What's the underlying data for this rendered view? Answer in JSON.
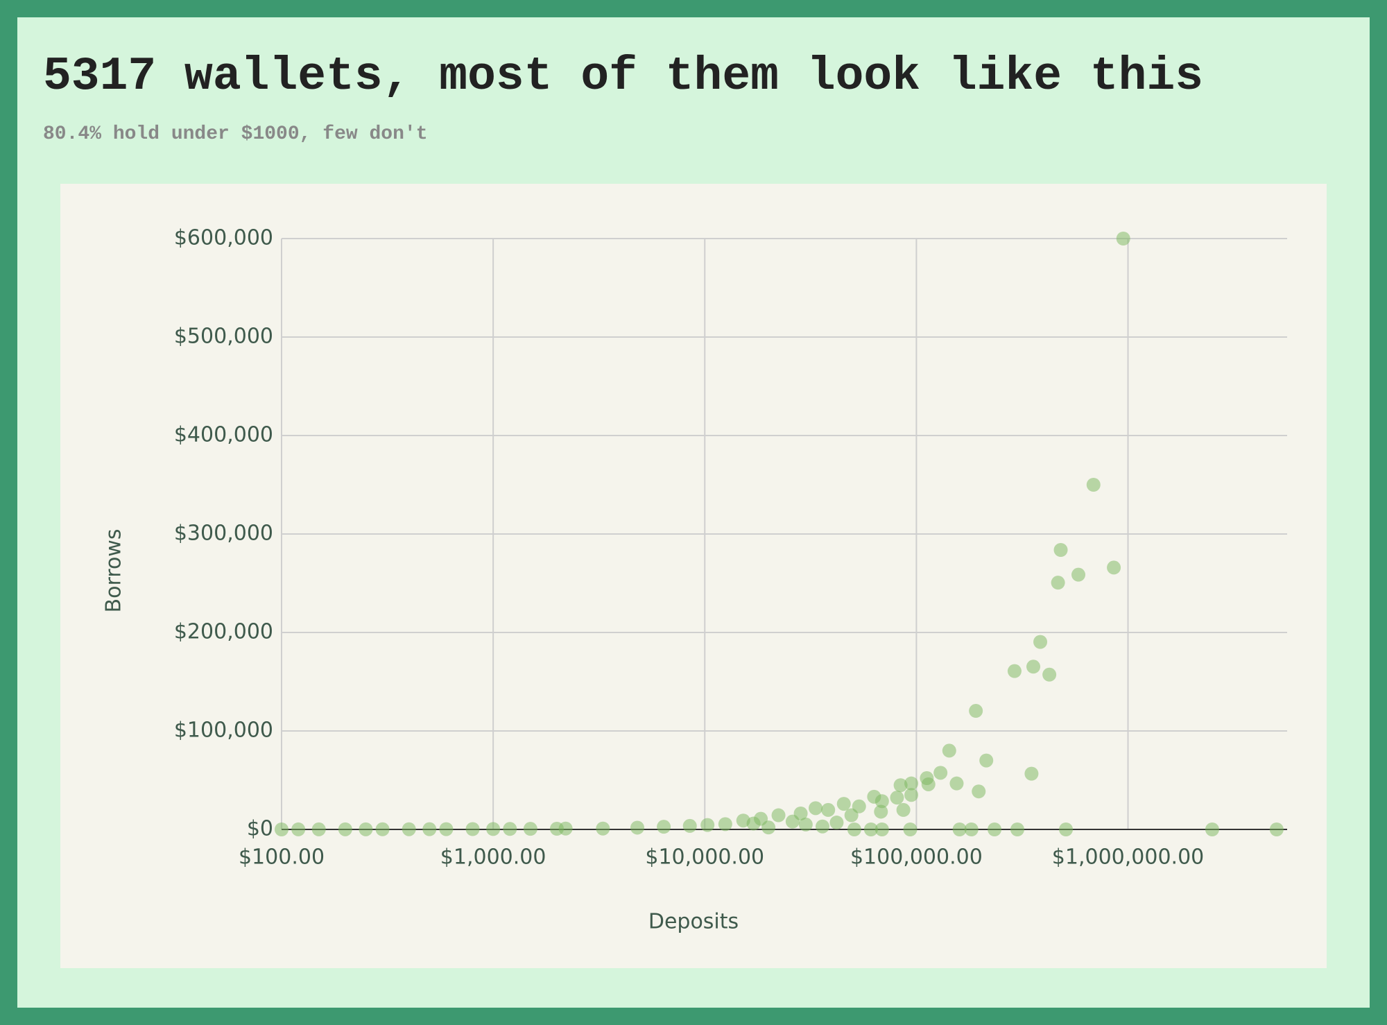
{
  "chart_data": {
    "type": "scatter",
    "title": "5317 wallets, most of them look like this",
    "subtitle": "80.4% hold under $1000, few don't",
    "x_label": "Deposits",
    "y_label": "Borrows",
    "x_scale": "log",
    "grid": true,
    "color": "#7ab55c",
    "xlim": [
      100,
      5650000
    ],
    "xticks": [
      {
        "value": 100,
        "label": "$100.00"
      },
      {
        "value": 1000,
        "label": "$1,000.00"
      },
      {
        "value": 10000,
        "label": "$10,000.00"
      },
      {
        "value": 100000,
        "label": "$100,000.00"
      },
      {
        "value": 1000000,
        "label": "$1,000,000.00"
      }
    ],
    "ylim": [
      0,
      600000
    ],
    "yticks": [
      {
        "value": 0,
        "label": "$0"
      },
      {
        "value": 100000,
        "label": "$100,000"
      },
      {
        "value": 200000,
        "label": "$200,000"
      },
      {
        "value": 300000,
        "label": "$300,000"
      },
      {
        "value": 400000,
        "label": "$400,000"
      },
      {
        "value": 500000,
        "label": "$500,000"
      },
      {
        "value": 600000,
        "label": "$600,000"
      }
    ],
    "x": [
      950000,
      687000,
      481000,
      467000,
      583000,
      857000,
      385000,
      291000,
      357000,
      425000,
      191000,
      214000,
      350000,
      197000,
      143000,
      155000,
      130000,
      112000,
      114000,
      94600,
      84200,
      94600,
      81000,
      86800,
      63100,
      68800,
      68000,
      53600,
      45400,
      49300,
      38300,
      33400,
      28400,
      22300,
      18400,
      15200,
      12500,
      10300,
      8500,
      6400,
      4800,
      3300,
      2200,
      509000,
      2500000,
      5040000,
      300000,
      234000,
      182000,
      160000,
      93500,
      68800,
      61000,
      50900,
      100,
      120,
      150,
      200,
      250,
      300,
      400,
      500,
      600,
      800,
      1000,
      1200,
      1500,
      2000,
      26000,
      30000,
      42000,
      36000,
      20000,
      17000
    ],
    "values": [
      600000,
      350000,
      283800,
      250600,
      258700,
      265900,
      190400,
      160800,
      165300,
      157200,
      120400,
      70000,
      56600,
      38600,
      80000,
      46700,
      57500,
      52100,
      45800,
      46700,
      44900,
      35000,
      32300,
      19800,
      33200,
      28700,
      18000,
      23400,
      26000,
      14400,
      19800,
      21600,
      16200,
      14400,
      10800,
      9000,
      5400,
      4500,
      3600,
      2700,
      1800,
      900,
      900,
      0,
      0,
      0,
      0,
      0,
      0,
      0,
      0,
      0,
      0,
      0,
      0,
      50,
      80,
      100,
      120,
      150,
      200,
      250,
      300,
      350,
      400,
      500,
      600,
      700,
      8000,
      5000,
      7000,
      3000,
      2000,
      6000
    ]
  }
}
